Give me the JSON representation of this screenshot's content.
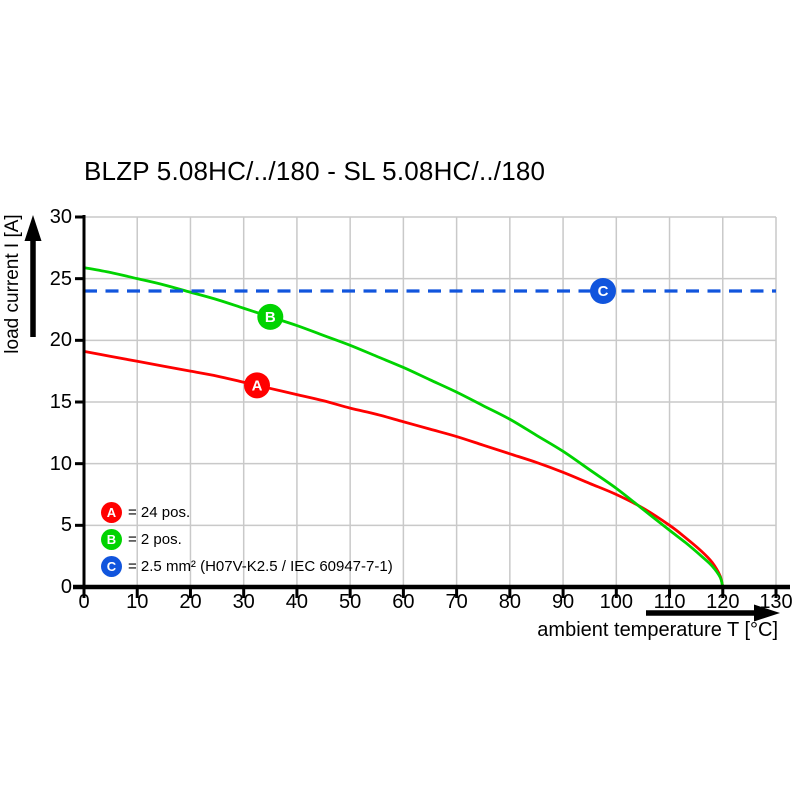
{
  "title": "BLZP 5.08HC/../180 - SL 5.08HC/../180",
  "colors": {
    "series_a": "#ff0000",
    "series_b": "#00d300",
    "series_c": "#1155dd",
    "grid": "#c9c9c9",
    "axis": "#000000",
    "background": "#ffffff",
    "marker_letter": "#ffffff"
  },
  "chart_data": {
    "type": "line",
    "title": "BLZP 5.08HC/../180 - SL 5.08HC/../180",
    "xlabel": "ambient temperature T [°C]",
    "ylabel": "load current I [A]",
    "xlim": [
      0,
      130
    ],
    "ylim": [
      0,
      30
    ],
    "x_ticks": [
      0,
      10,
      20,
      30,
      40,
      50,
      60,
      70,
      80,
      90,
      100,
      110,
      120,
      130
    ],
    "y_ticks": [
      0,
      5,
      10,
      15,
      20,
      25,
      30
    ],
    "grid": true,
    "legend_position": "lower-left",
    "series": [
      {
        "id": "A",
        "name": "24 pos.",
        "color": "#ff0000",
        "style": "solid",
        "marker": {
          "label": "A",
          "x": 32.5,
          "y": 16.35
        },
        "points": [
          [
            0,
            19.1
          ],
          [
            5,
            18.7
          ],
          [
            10,
            18.3
          ],
          [
            15,
            17.9
          ],
          [
            20,
            17.5
          ],
          [
            25,
            17.1
          ],
          [
            30,
            16.6
          ],
          [
            35,
            16.1
          ],
          [
            40,
            15.6
          ],
          [
            45,
            15.1
          ],
          [
            50,
            14.5
          ],
          [
            55,
            14.0
          ],
          [
            60,
            13.4
          ],
          [
            65,
            12.8
          ],
          [
            70,
            12.2
          ],
          [
            75,
            11.5
          ],
          [
            80,
            10.8
          ],
          [
            85,
            10.1
          ],
          [
            90,
            9.3
          ],
          [
            95,
            8.4
          ],
          [
            100,
            7.5
          ],
          [
            105,
            6.4
          ],
          [
            110,
            5.0
          ],
          [
            113,
            4.0
          ],
          [
            116,
            2.9
          ],
          [
            118,
            2.0
          ],
          [
            119.5,
            0.9
          ],
          [
            120,
            0
          ]
        ]
      },
      {
        "id": "B",
        "name": "2 pos.",
        "color": "#00d300",
        "style": "solid",
        "marker": {
          "label": "B",
          "x": 35,
          "y": 21.9
        },
        "points": [
          [
            0,
            25.9
          ],
          [
            5,
            25.5
          ],
          [
            10,
            25.0
          ],
          [
            15,
            24.5
          ],
          [
            20,
            23.9
          ],
          [
            25,
            23.3
          ],
          [
            30,
            22.6
          ],
          [
            35,
            21.9
          ],
          [
            40,
            21.2
          ],
          [
            45,
            20.4
          ],
          [
            50,
            19.6
          ],
          [
            55,
            18.7
          ],
          [
            60,
            17.8
          ],
          [
            65,
            16.8
          ],
          [
            70,
            15.8
          ],
          [
            75,
            14.7
          ],
          [
            80,
            13.6
          ],
          [
            85,
            12.3
          ],
          [
            90,
            11.0
          ],
          [
            95,
            9.5
          ],
          [
            100,
            8.0
          ],
          [
            105,
            6.3
          ],
          [
            110,
            4.6
          ],
          [
            113,
            3.6
          ],
          [
            116,
            2.5
          ],
          [
            118,
            1.7
          ],
          [
            119.5,
            0.8
          ],
          [
            120,
            0
          ]
        ]
      },
      {
        "id": "C",
        "name": "2.5 mm² (H07V-K2.5 / IEC 60947-7-1)",
        "color": "#1155dd",
        "style": "dashed",
        "marker": {
          "label": "C",
          "x": 97.5,
          "y": 24
        },
        "points": [
          [
            0,
            24
          ],
          [
            130,
            24
          ]
        ]
      }
    ],
    "legend": [
      {
        "label": "A",
        "color": "#ff0000",
        "text": "= 24 pos."
      },
      {
        "label": "B",
        "color": "#00d300",
        "text": "= 2 pos."
      },
      {
        "label": "C",
        "color": "#1155dd",
        "text": "= 2.5 mm² (H07V-K2.5 / IEC 60947-7-1)"
      }
    ]
  }
}
